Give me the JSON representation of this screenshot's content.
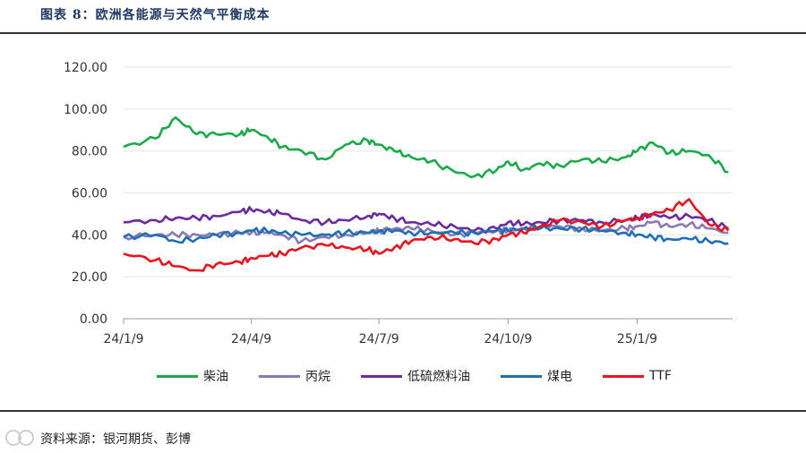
{
  "header": {
    "title": "图表 8：欧洲各能源与天然气平衡成本"
  },
  "source": {
    "text": "资料来源：银河期货、彭博"
  },
  "colors": {
    "diesel": "#1aaa4a",
    "propane": "#8c78b4",
    "lsfo": "#6a2aa0",
    "coal": "#1f6fb4",
    "ttf": "#e8141e",
    "axis": "#999999",
    "grid": "#e6e6e6"
  },
  "chart_data": {
    "type": "line",
    "title": "",
    "xlabel": "",
    "ylabel": "",
    "ylim": [
      0,
      120
    ],
    "yticks": [
      "0.00",
      "20.00",
      "40.00",
      "60.00",
      "80.00",
      "100.00",
      "120.00"
    ],
    "xticks": [
      "24/1/9",
      "24/4/9",
      "24/7/9",
      "24/10/9",
      "25/1/9"
    ],
    "x": [
      "2024-01-09",
      "2024-02-01",
      "2024-02-15",
      "2024-03-01",
      "2024-03-15",
      "2024-04-01",
      "2024-04-09",
      "2024-04-20",
      "2024-05-01",
      "2024-05-15",
      "2024-06-01",
      "2024-06-15",
      "2024-07-01",
      "2024-07-09",
      "2024-07-20",
      "2024-08-01",
      "2024-08-15",
      "2024-09-01",
      "2024-09-15",
      "2024-10-01",
      "2024-10-09",
      "2024-10-20",
      "2024-11-01",
      "2024-11-15",
      "2024-12-01",
      "2024-12-15",
      "2025-01-01",
      "2025-01-09",
      "2025-01-20",
      "2025-02-01",
      "2025-02-15",
      "2025-03-01",
      "2025-03-15"
    ],
    "series": [
      {
        "name": "柴油",
        "color_key": "diesel",
        "values": [
          82,
          86,
          96,
          88,
          88,
          88,
          90,
          87,
          82,
          80,
          76,
          83,
          85,
          83,
          80,
          77,
          75,
          70,
          68,
          71,
          75,
          71,
          74,
          73,
          76,
          75,
          77,
          80,
          84,
          79,
          80,
          78,
          70
        ]
      },
      {
        "name": "丙烷",
        "color_key": "propane",
        "values": [
          39,
          40,
          40,
          40,
          40,
          41,
          41,
          41,
          40,
          37,
          39,
          40,
          41,
          42,
          43,
          43,
          42,
          40,
          41,
          42,
          42,
          43,
          44,
          44,
          43,
          42,
          43,
          44,
          46,
          44,
          45,
          43,
          41
        ]
      },
      {
        "name": "低硫燃料油",
        "color_key": "lsfo",
        "values": [
          46,
          47,
          48,
          48,
          49,
          51,
          52,
          51,
          50,
          47,
          46,
          47,
          49,
          50,
          48,
          46,
          45,
          44,
          42,
          43,
          46,
          45,
          46,
          47,
          47,
          46,
          47,
          48,
          50,
          48,
          49,
          47,
          43
        ]
      },
      {
        "name": "煤电",
        "color_key": "coal",
        "values": [
          39,
          40,
          37,
          38,
          40,
          41,
          42,
          42,
          41,
          40,
          40,
          41,
          41,
          42,
          42,
          41,
          41,
          41,
          41,
          42,
          42,
          43,
          43,
          43,
          43,
          42,
          41,
          40,
          39,
          38,
          38,
          37,
          36
        ]
      },
      {
        "name": "TTF",
        "color_key": "ttf",
        "values": [
          31,
          28,
          25,
          23,
          26,
          27,
          29,
          30,
          31,
          34,
          35,
          34,
          33,
          31,
          34,
          37,
          39,
          38,
          36,
          38,
          40,
          41,
          44,
          47,
          46,
          44,
          47,
          48,
          50,
          52,
          57,
          45,
          42
        ]
      }
    ],
    "grid": true,
    "legend": "bottom"
  }
}
